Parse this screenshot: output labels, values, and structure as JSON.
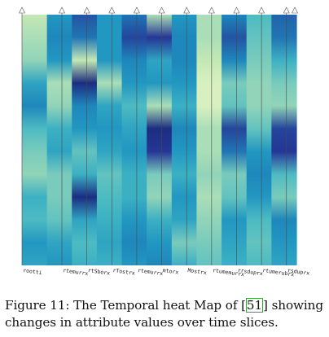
{
  "figure": {
    "columns": [
      "rootti",
      "rtemurrx",
      "rtSborx",
      "rTostrx",
      "rtemurrx",
      "mtorx",
      "Mostrx",
      "rtumemurrx",
      "rrsduprx",
      "rtumerubrx",
      "rsduprx"
    ]
  },
  "chart_data": {
    "type": "heatmap",
    "colormap": [
      "#ffffd9",
      "#c7e9b4",
      "#7fcdbb",
      "#41b6c4",
      "#1d91c0",
      "#225ea8",
      "#253494",
      "#081d58"
    ],
    "columns": [
      "rootti",
      "rtemurrx",
      "rtSborx",
      "rTostrx",
      "rtemurrx",
      "mtorx",
      "Mostrx",
      "rtumemurrx",
      "rrsduprx",
      "rtumerubrx",
      "rsduprx"
    ],
    "time_slices_top_to_bottom": 12,
    "values": [
      [
        0.15,
        0.55,
        0.75,
        0.55,
        0.65,
        0.2,
        0.55,
        0.2,
        0.6,
        0.4,
        0.7
      ],
      [
        0.2,
        0.6,
        0.65,
        0.55,
        0.8,
        0.85,
        0.6,
        0.2,
        0.75,
        0.35,
        0.65
      ],
      [
        0.25,
        0.55,
        0.15,
        0.55,
        0.6,
        0.5,
        0.6,
        0.15,
        0.6,
        0.3,
        0.45
      ],
      [
        0.5,
        0.2,
        0.9,
        0.2,
        0.55,
        0.55,
        0.55,
        0.1,
        0.3,
        0.25,
        0.3
      ],
      [
        0.6,
        0.25,
        0.6,
        0.5,
        0.4,
        0.2,
        0.45,
        0.1,
        0.35,
        0.25,
        0.25
      ],
      [
        0.4,
        0.45,
        0.55,
        0.55,
        0.5,
        0.9,
        0.6,
        0.2,
        0.8,
        0.35,
        0.8
      ],
      [
        0.3,
        0.5,
        0.35,
        0.5,
        0.55,
        0.85,
        0.55,
        0.2,
        0.65,
        0.55,
        0.85
      ],
      [
        0.25,
        0.3,
        0.45,
        0.35,
        0.45,
        0.3,
        0.45,
        0.25,
        0.3,
        0.6,
        0.4
      ],
      [
        0.45,
        0.3,
        0.9,
        0.4,
        0.45,
        0.25,
        0.55,
        0.2,
        0.35,
        0.55,
        0.3
      ],
      [
        0.4,
        0.35,
        0.5,
        0.45,
        0.55,
        0.45,
        0.5,
        0.25,
        0.55,
        0.4,
        0.6
      ],
      [
        0.55,
        0.5,
        0.4,
        0.5,
        0.6,
        0.55,
        0.3,
        0.3,
        0.5,
        0.35,
        0.55
      ],
      [
        0.5,
        0.55,
        0.45,
        0.45,
        0.55,
        0.6,
        0.45,
        0.35,
        0.45,
        0.4,
        0.5
      ]
    ]
  },
  "caption": {
    "before_ref": "Figure 11: The Temporal heat Map of [",
    "ref": "51",
    "after_ref": "] showing changes in attribute values over time slices."
  }
}
